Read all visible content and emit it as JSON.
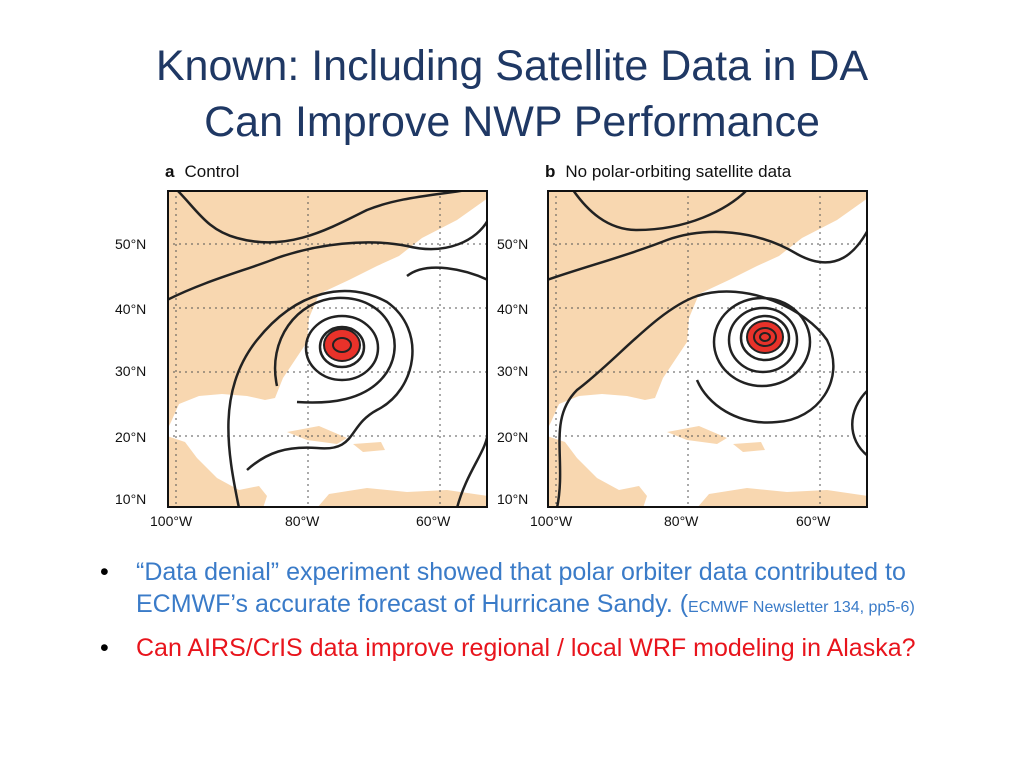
{
  "slide": {
    "title_line1": "Known: Including Satellite Data in DA",
    "title_line2": "Can Improve NWP Performance"
  },
  "maps": {
    "panels": [
      {
        "letter": "a",
        "caption": "Control"
      },
      {
        "letter": "b",
        "caption": "No polar-orbiting satellite data"
      }
    ],
    "lat_ticks": [
      "50°N",
      "40°N",
      "30°N",
      "20°N",
      "10°N"
    ],
    "lon_ticks": [
      "100°W",
      "80°W",
      "60°W"
    ],
    "colors": {
      "land": "#f8d7b0",
      "contour": "#222222",
      "storm": "#e8322a"
    }
  },
  "bullets": {
    "b1_main": "“Data denial” experiment showed that polar orbiter data contributed to ECMWF’s accurate forecast of Hurricane Sandy. (",
    "b1_ref": "ECMWF Newsletter 134, pp5-6)",
    "b2": "Can AIRS/CrIS data improve regional / local WRF modeling in Alaska?"
  }
}
